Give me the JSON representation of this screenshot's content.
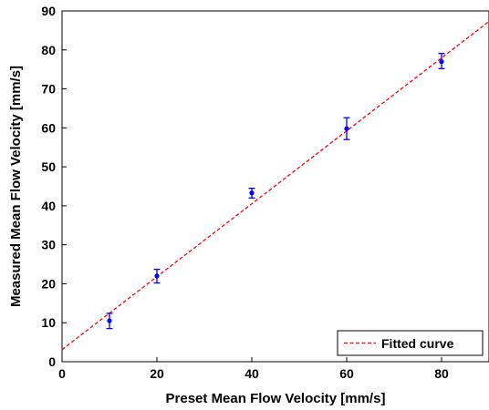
{
  "chart_data": {
    "type": "scatter",
    "xlabel": "Preset Mean Flow Velocity [mm/s]",
    "ylabel": "Measured Mean Flow Velocity [mm/s]",
    "xlim": [
      0,
      90
    ],
    "ylim": [
      0,
      90
    ],
    "xticks": [
      0,
      20,
      40,
      60,
      80
    ],
    "yticks": [
      0,
      10,
      20,
      30,
      40,
      50,
      60,
      70,
      80,
      90
    ],
    "grid": false,
    "legend_position": "bottom-right",
    "series": [
      {
        "type": "scatter_errorbar",
        "x": [
          10,
          20,
          40,
          60,
          80
        ],
        "y": [
          10.5,
          22,
          43.3,
          59.8,
          77
        ],
        "err_low": [
          2,
          1.8,
          1.3,
          2.8,
          1.8
        ],
        "err_high": [
          1.9,
          1.7,
          1.2,
          2.8,
          2.1
        ],
        "color": "#0000ff"
      },
      {
        "name": "Fitted curve",
        "type": "line",
        "style": "dashed",
        "x": [
          0,
          90
        ],
        "y": [
          3.1,
          87.3
        ],
        "color": "#ff0000"
      }
    ]
  }
}
